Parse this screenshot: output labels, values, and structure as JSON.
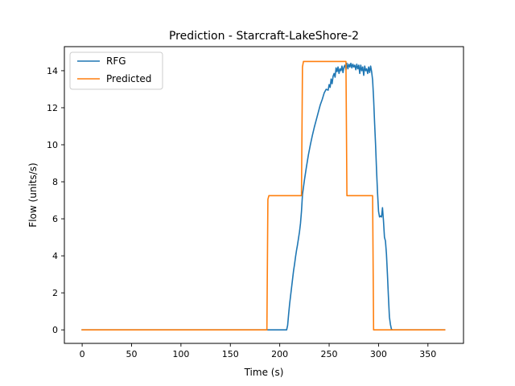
{
  "chart_data": {
    "type": "line",
    "title": "Prediction - Starcraft-LakeShore-2",
    "xlabel": "Time (s)",
    "ylabel": "Flow (units/s)",
    "xlim": [
      -18,
      386
    ],
    "ylim": [
      -0.73,
      15.3
    ],
    "xticks": [
      0,
      50,
      100,
      150,
      200,
      250,
      300,
      350
    ],
    "yticks": [
      0,
      2,
      4,
      6,
      8,
      10,
      12,
      14
    ],
    "grid": false,
    "legend_position": "upper-left",
    "series": [
      {
        "name": "RFG",
        "color": "#1f77b4",
        "points": [
          [
            0,
            0
          ],
          [
            100,
            0
          ],
          [
            207,
            0
          ],
          [
            208,
            0.25
          ],
          [
            209,
            0.85
          ],
          [
            210,
            1.4
          ],
          [
            211,
            1.85
          ],
          [
            212,
            2.3
          ],
          [
            213,
            2.75
          ],
          [
            214,
            3.2
          ],
          [
            215,
            3.55
          ],
          [
            216,
            3.95
          ],
          [
            217,
            4.3
          ],
          [
            218,
            4.6
          ],
          [
            219,
            4.95
          ],
          [
            220,
            5.3
          ],
          [
            221,
            5.75
          ],
          [
            222,
            6.4
          ],
          [
            223,
            7.3
          ],
          [
            225,
            8.1
          ],
          [
            227,
            8.8
          ],
          [
            229,
            9.45
          ],
          [
            231,
            10.0
          ],
          [
            233,
            10.5
          ],
          [
            235,
            10.95
          ],
          [
            237,
            11.35
          ],
          [
            239,
            11.75
          ],
          [
            241,
            12.15
          ],
          [
            243,
            12.45
          ],
          [
            245,
            12.8
          ],
          [
            247,
            13.0
          ],
          [
            249,
            12.95
          ],
          [
            250,
            13.25
          ],
          [
            251,
            13.1
          ],
          [
            252,
            13.55
          ],
          [
            253,
            13.3
          ],
          [
            254,
            13.7
          ],
          [
            255,
            13.85
          ],
          [
            256,
            13.65
          ],
          [
            257,
            14.15
          ],
          [
            258,
            13.95
          ],
          [
            259,
            14.2
          ],
          [
            260,
            13.85
          ],
          [
            261,
            14.1
          ],
          [
            262,
            14.0
          ],
          [
            263,
            14.25
          ],
          [
            264,
            13.9
          ],
          [
            265,
            14.2
          ],
          [
            266,
            14.3
          ],
          [
            267,
            14.05
          ],
          [
            268,
            14.4
          ],
          [
            269,
            14.1
          ],
          [
            270,
            14.35
          ],
          [
            271,
            14.2
          ],
          [
            272,
            14.4
          ],
          [
            273,
            14.15
          ],
          [
            274,
            14.35
          ],
          [
            275,
            14.2
          ],
          [
            276,
            14.3
          ],
          [
            277,
            14.05
          ],
          [
            278,
            14.35
          ],
          [
            279,
            14.1
          ],
          [
            280,
            14.3
          ],
          [
            281,
            13.85
          ],
          [
            282,
            14.3
          ],
          [
            283,
            14.0
          ],
          [
            284,
            14.2
          ],
          [
            285,
            13.75
          ],
          [
            286,
            14.25
          ],
          [
            287,
            14.0
          ],
          [
            288,
            14.1
          ],
          [
            289,
            13.85
          ],
          [
            290,
            14.2
          ],
          [
            291,
            13.9
          ],
          [
            292,
            14.25
          ],
          [
            293,
            13.95
          ],
          [
            294,
            13.5
          ],
          [
            295,
            12.5
          ],
          [
            296,
            11.2
          ],
          [
            297,
            10.0
          ],
          [
            298,
            8.6
          ],
          [
            299,
            7.4
          ],
          [
            300,
            6.4
          ],
          [
            301,
            6.1
          ],
          [
            302,
            6.15
          ],
          [
            303,
            6.1
          ],
          [
            304,
            6.6
          ],
          [
            305,
            5.9
          ],
          [
            306,
            5.0
          ],
          [
            307,
            4.8
          ],
          [
            308,
            4.1
          ],
          [
            309,
            3.0
          ],
          [
            310,
            1.8
          ],
          [
            311,
            0.7
          ],
          [
            312,
            0.3
          ],
          [
            313,
            0.05
          ],
          [
            314,
            0
          ],
          [
            367,
            0
          ]
        ]
      },
      {
        "name": "Predicted",
        "color": "#ff7f0e",
        "points": [
          [
            0,
            0
          ],
          [
            187,
            0
          ],
          [
            188,
            7.05
          ],
          [
            189,
            7.25
          ],
          [
            222,
            7.25
          ],
          [
            223,
            14.2
          ],
          [
            224,
            14.5
          ],
          [
            267,
            14.5
          ],
          [
            268,
            7.25
          ],
          [
            294,
            7.25
          ],
          [
            295,
            0
          ],
          [
            367,
            0
          ]
        ]
      }
    ]
  }
}
